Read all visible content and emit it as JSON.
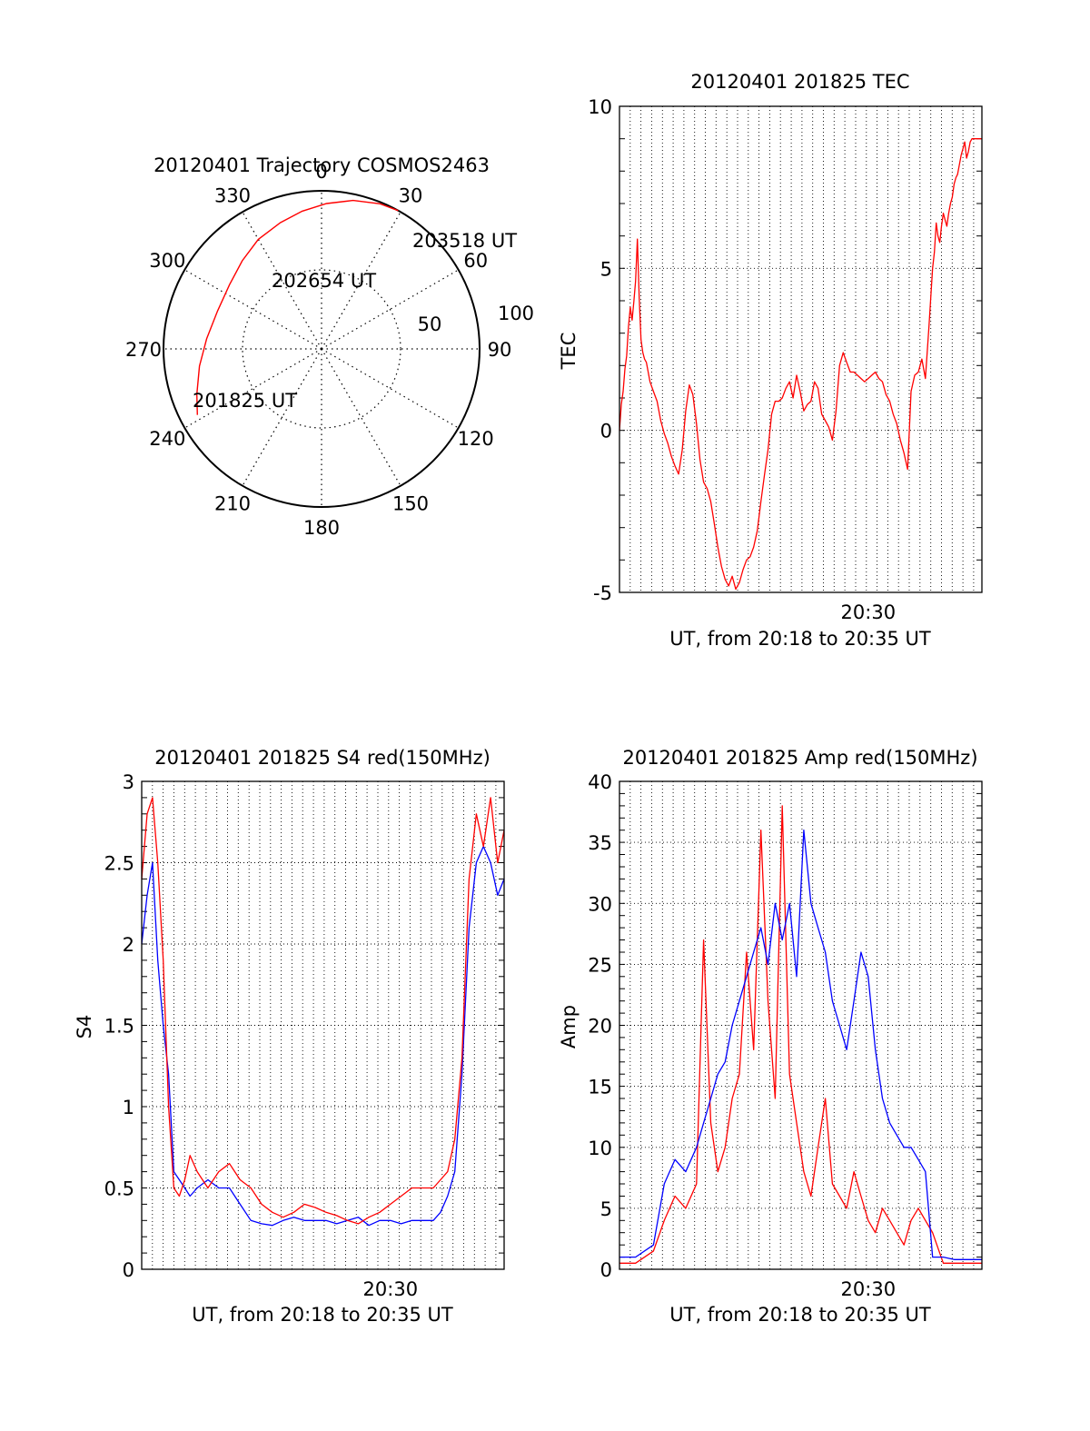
{
  "chart_data": [
    {
      "id": "polar",
      "type": "scatter",
      "title": "20120401 Trajectory COSMOS2463",
      "azimuth_labels": [
        {
          "az": 0,
          "text": "0"
        },
        {
          "az": 30,
          "text": "30"
        },
        {
          "az": 60,
          "text": "60"
        },
        {
          "az": 90,
          "text": "90"
        },
        {
          "az": 120,
          "text": "120"
        },
        {
          "az": 150,
          "text": "150"
        },
        {
          "az": 180,
          "text": "180"
        },
        {
          "az": 210,
          "text": "210"
        },
        {
          "az": 240,
          "text": "240"
        },
        {
          "az": 270,
          "text": "270"
        },
        {
          "az": 300,
          "text": "300"
        },
        {
          "az": 330,
          "text": "330"
        }
      ],
      "radial_labels": [
        "50",
        "100"
      ],
      "series": [
        {
          "color": "#ff0000",
          "points": [
            {
              "az": 242,
              "r": 89
            },
            {
              "az": 250,
              "r": 84
            },
            {
              "az": 262,
              "r": 78
            },
            {
              "az": 275,
              "r": 73
            },
            {
              "az": 290,
              "r": 70
            },
            {
              "az": 305,
              "r": 71
            },
            {
              "az": 318,
              "r": 75
            },
            {
              "az": 330,
              "r": 80
            },
            {
              "az": 342,
              "r": 84
            },
            {
              "az": 352,
              "r": 88
            },
            {
              "az": 2,
              "r": 92
            },
            {
              "az": 12,
              "r": 96
            },
            {
              "az": 22,
              "r": 99
            },
            {
              "az": 29,
              "r": 100
            }
          ]
        }
      ],
      "annotations": [
        {
          "text": "203518 UT",
          "near": "end"
        },
        {
          "text": "202654 UT",
          "near": "middle"
        },
        {
          "text": "201825 UT",
          "near": "start"
        }
      ]
    },
    {
      "id": "tec",
      "type": "line",
      "title": "20120401 201825 TEC",
      "xlabel": "UT, from 20:18 to 20:35 UT",
      "ylabel": "TEC",
      "xlim": [
        20.3069,
        20.5883
      ],
      "ylim": [
        -5,
        10
      ],
      "yticks": [
        {
          "v": -5,
          "t": "-5"
        },
        {
          "v": 0,
          "t": "0"
        },
        {
          "v": 5,
          "t": "5"
        },
        {
          "v": 10,
          "t": "10"
        }
      ],
      "xticks": [
        {
          "v": 20.5,
          "t": "20:30"
        }
      ],
      "grid": true,
      "series": [
        {
          "color": "#ff0000",
          "x": [
            20.3069,
            20.3083,
            20.3097,
            20.3111,
            20.3125,
            20.3139,
            20.3153,
            20.3167,
            20.3181,
            20.3194,
            20.3208,
            20.3222,
            20.3236,
            20.325,
            20.3264,
            20.3278,
            20.3292,
            20.3306,
            20.3333,
            20.3361,
            20.3389,
            20.3417,
            20.3444,
            20.3472,
            20.35,
            20.3528,
            20.3556,
            20.3583,
            20.3611,
            20.3639,
            20.3667,
            20.3694,
            20.3722,
            20.375,
            20.3778,
            20.3806,
            20.3833,
            20.3861,
            20.3889,
            20.3917,
            20.3944,
            20.3972,
            20.4,
            20.4028,
            20.4056,
            20.4083,
            20.4111,
            20.4139,
            20.4167,
            20.4194,
            20.4222,
            20.425,
            20.4278,
            20.4306,
            20.4333,
            20.4361,
            20.4389,
            20.4417,
            20.4444,
            20.4472,
            20.45,
            20.4528,
            20.4556,
            20.4583,
            20.4611,
            20.4639,
            20.4667,
            20.4694,
            20.4722,
            20.475,
            20.4778,
            20.4806,
            20.4833,
            20.4861,
            20.4889,
            20.4917,
            20.4944,
            20.4972,
            20.5,
            20.5028,
            20.5056,
            20.5083,
            20.5111,
            20.5139,
            20.5167,
            20.5194,
            20.5222,
            20.525,
            20.5278,
            20.5306,
            20.5333,
            20.5361,
            20.5389,
            20.5417,
            20.5444,
            20.5472,
            20.55,
            20.5514,
            20.5528,
            20.5542,
            20.5556,
            20.5569,
            20.5583,
            20.5597,
            20.5611,
            20.5625,
            20.5639,
            20.5653,
            20.5667,
            20.5681,
            20.5694,
            20.5708,
            20.5722,
            20.5736,
            20.575,
            20.5764,
            20.5778,
            20.5792,
            20.5806,
            20.5819,
            20.5833,
            20.5847,
            20.5861,
            20.5875,
            20.5883
          ],
          "y": [
            0,
            0.8,
            1.2,
            1.9,
            2.3,
            3.2,
            3.8,
            3.4,
            4.0,
            4.6,
            5.9,
            4.1,
            2.8,
            2.4,
            2.2,
            2.1,
            1.8,
            1.5,
            1.2,
            0.9,
            0.3,
            -0.1,
            -0.4,
            -0.8,
            -1.1,
            -1.35,
            -0.6,
            0.6,
            1.4,
            1.1,
            0.2,
            -0.9,
            -1.6,
            -1.8,
            -2.2,
            -2.9,
            -3.6,
            -4.2,
            -4.6,
            -4.8,
            -4.5,
            -4.9,
            -4.7,
            -4.3,
            -4.0,
            -3.9,
            -3.6,
            -3.1,
            -2.2,
            -1.4,
            -0.6,
            0.5,
            0.9,
            0.9,
            1.0,
            1.3,
            1.5,
            1.0,
            1.7,
            1.2,
            0.6,
            0.8,
            0.9,
            1.5,
            1.3,
            0.5,
            0.3,
            0.1,
            -0.3,
            0.6,
            2.0,
            2.4,
            2.1,
            1.8,
            1.8,
            1.7,
            1.6,
            1.5,
            1.6,
            1.7,
            1.8,
            1.6,
            1.5,
            1.1,
            0.9,
            0.5,
            0.2,
            -0.3,
            -0.7,
            -1.2,
            1.2,
            1.7,
            1.8,
            2.2,
            1.6,
            3.2,
            5.0,
            5.5,
            6.4,
            6.0,
            5.8,
            6.3,
            6.7,
            6.5,
            6.3,
            6.7,
            7.0,
            7.2,
            7.6,
            7.8,
            7.9,
            8.2,
            8.5,
            8.7,
            8.9,
            8.4,
            8.6,
            8.9,
            9.0,
            9.0,
            9.0,
            9.0,
            9.0,
            9.0,
            9.0
          ]
        }
      ]
    },
    {
      "id": "s4",
      "type": "line",
      "title": "20120401 201825 S4 red(150MHz)",
      "xlabel": "UT, from 20:18 to 20:35 UT",
      "ylabel": "S4",
      "xlim": [
        20.3069,
        20.5883
      ],
      "ylim": [
        0,
        3
      ],
      "yticks": [
        {
          "v": 0,
          "t": "0"
        },
        {
          "v": 0.5,
          "t": "0.5"
        },
        {
          "v": 1,
          "t": "1"
        },
        {
          "v": 1.5,
          "t": "1.5"
        },
        {
          "v": 2,
          "t": "2"
        },
        {
          "v": 2.5,
          "t": "2.5"
        },
        {
          "v": 3,
          "t": "3"
        }
      ],
      "xticks": [
        {
          "v": 20.5,
          "t": "20:30"
        }
      ],
      "grid": true,
      "series": [
        {
          "color": "#0000ff",
          "x": [
            20.3069,
            20.3111,
            20.3153,
            20.3194,
            20.3236,
            20.3278,
            20.3319,
            20.3361,
            20.3403,
            20.3444,
            20.35,
            20.3583,
            20.3667,
            20.375,
            20.3833,
            20.3917,
            20.4,
            20.4083,
            20.4167,
            20.425,
            20.4333,
            20.4417,
            20.45,
            20.4583,
            20.4667,
            20.475,
            20.4833,
            20.4917,
            20.5,
            20.5083,
            20.5167,
            20.525,
            20.5333,
            20.5389,
            20.5444,
            20.55,
            20.5556,
            20.5611,
            20.5667,
            20.5722,
            20.5778,
            20.5833,
            20.5883
          ],
          "y": [
            2.0,
            2.3,
            2.5,
            1.9,
            1.5,
            1.2,
            0.6,
            0.55,
            0.5,
            0.45,
            0.5,
            0.55,
            0.5,
            0.5,
            0.4,
            0.3,
            0.28,
            0.27,
            0.3,
            0.32,
            0.3,
            0.3,
            0.3,
            0.28,
            0.3,
            0.32,
            0.27,
            0.3,
            0.3,
            0.28,
            0.3,
            0.3,
            0.3,
            0.35,
            0.45,
            0.6,
            1.2,
            2.1,
            2.5,
            2.6,
            2.5,
            2.3,
            2.4
          ]
        },
        {
          "color": "#ff0000",
          "x": [
            20.3069,
            20.3111,
            20.3153,
            20.3194,
            20.3236,
            20.3278,
            20.3319,
            20.3361,
            20.3403,
            20.3444,
            20.35,
            20.3583,
            20.3667,
            20.375,
            20.3833,
            20.3917,
            20.4,
            20.4083,
            20.4167,
            20.425,
            20.4333,
            20.4417,
            20.45,
            20.4583,
            20.4667,
            20.475,
            20.4833,
            20.4917,
            20.5,
            20.5083,
            20.5167,
            20.525,
            20.5333,
            20.5389,
            20.5444,
            20.55,
            20.5556,
            20.5611,
            20.5667,
            20.5722,
            20.5778,
            20.5833,
            20.5883
          ],
          "y": [
            2.4,
            2.8,
            2.9,
            2.5,
            1.9,
            1.0,
            0.5,
            0.45,
            0.55,
            0.7,
            0.6,
            0.5,
            0.6,
            0.65,
            0.55,
            0.5,
            0.4,
            0.35,
            0.32,
            0.35,
            0.4,
            0.38,
            0.35,
            0.33,
            0.3,
            0.28,
            0.32,
            0.35,
            0.4,
            0.45,
            0.5,
            0.5,
            0.5,
            0.55,
            0.6,
            0.8,
            1.3,
            2.4,
            2.8,
            2.6,
            2.9,
            2.5,
            2.7
          ]
        }
      ]
    },
    {
      "id": "amp",
      "type": "line",
      "title": "20120401 201825 Amp red(150MHz)",
      "xlabel": "UT, from 20:18 to 20:35 UT",
      "ylabel": "Amp",
      "xlim": [
        20.3069,
        20.5883
      ],
      "ylim": [
        0,
        40
      ],
      "yticks": [
        {
          "v": 0,
          "t": "0"
        },
        {
          "v": 5,
          "t": "5"
        },
        {
          "v": 10,
          "t": "10"
        },
        {
          "v": 15,
          "t": "15"
        },
        {
          "v": 20,
          "t": "20"
        },
        {
          "v": 25,
          "t": "25"
        },
        {
          "v": 30,
          "t": "30"
        },
        {
          "v": 35,
          "t": "35"
        },
        {
          "v": 40,
          "t": "40"
        }
      ],
      "xticks": [
        {
          "v": 20.5,
          "t": "20:30"
        }
      ],
      "grid": true,
      "series": [
        {
          "color": "#ff0000",
          "x": [
            20.3069,
            20.3194,
            20.3333,
            20.3417,
            20.35,
            20.3583,
            20.3667,
            20.3722,
            20.3778,
            20.3833,
            20.3889,
            20.3944,
            20.4,
            20.4056,
            20.4111,
            20.4167,
            20.4222,
            20.4278,
            20.4333,
            20.4389,
            20.4444,
            20.45,
            20.4556,
            20.4611,
            20.4667,
            20.4722,
            20.4778,
            20.4833,
            20.4889,
            20.4944,
            20.5,
            20.5056,
            20.5111,
            20.5167,
            20.5222,
            20.5278,
            20.5333,
            20.5389,
            20.5444,
            20.55,
            20.5583,
            20.5667,
            20.5883
          ],
          "y": [
            0.5,
            0.5,
            1.5,
            4,
            6,
            5,
            7,
            27,
            12,
            8,
            10,
            14,
            16,
            26,
            18,
            36,
            22,
            14,
            38,
            16,
            12,
            8,
            6,
            10,
            14,
            7,
            6,
            5,
            8,
            6,
            4,
            3,
            5,
            4,
            3,
            2,
            4,
            5,
            4,
            3,
            0.5,
            0.5,
            0.5
          ]
        },
        {
          "color": "#0000ff",
          "x": [
            20.3069,
            20.3194,
            20.3333,
            20.3417,
            20.35,
            20.3583,
            20.3667,
            20.3722,
            20.3778,
            20.3833,
            20.3889,
            20.3944,
            20.4,
            20.4056,
            20.4111,
            20.4167,
            20.4222,
            20.4278,
            20.4333,
            20.4389,
            20.4444,
            20.45,
            20.4556,
            20.4611,
            20.4667,
            20.4722,
            20.4778,
            20.4833,
            20.4889,
            20.4944,
            20.5,
            20.5056,
            20.5111,
            20.5167,
            20.5222,
            20.5278,
            20.5333,
            20.5389,
            20.5444,
            20.55,
            20.5583,
            20.5667,
            20.5883
          ],
          "y": [
            1,
            1,
            2,
            7,
            9,
            8,
            10,
            12,
            14,
            16,
            17,
            20,
            22,
            24,
            26,
            28,
            25,
            30,
            27,
            30,
            24,
            36,
            30,
            28,
            26,
            22,
            20,
            18,
            22,
            26,
            24,
            18,
            14,
            12,
            11,
            10,
            10,
            9,
            8,
            1,
            1,
            0.8,
            0.8
          ]
        }
      ]
    }
  ]
}
